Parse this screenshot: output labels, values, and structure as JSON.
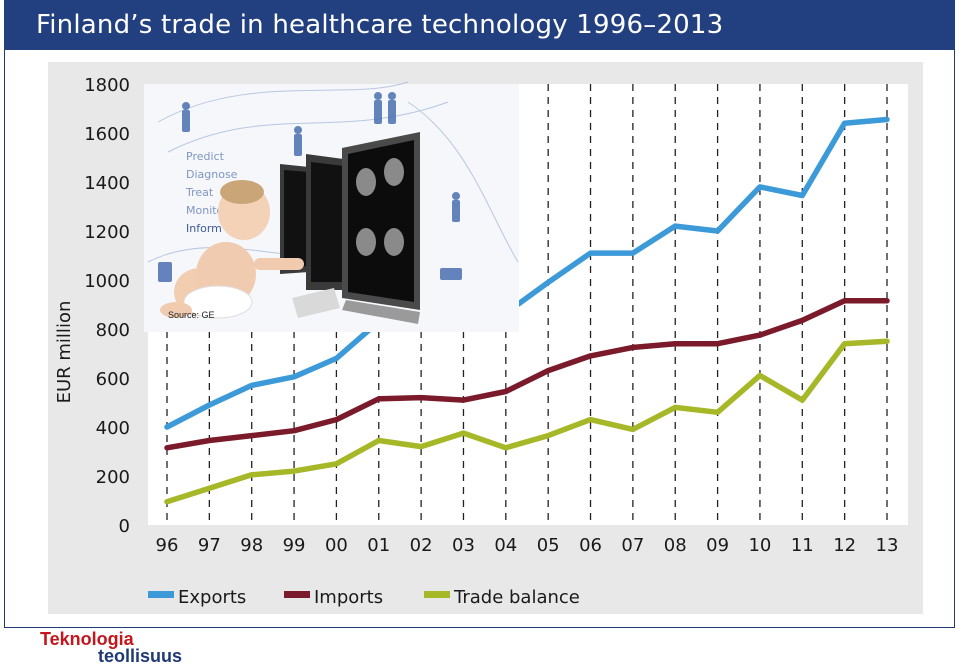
{
  "title": "Finland’s trade in healthcare technology 1996–2013",
  "inset_image": {
    "caption": "Source: GE",
    "words": [
      "Predict",
      "Diagnose",
      "Treat",
      "Monitor",
      "Inform"
    ]
  },
  "logo": {
    "line1": "Teknologia",
    "line2": "teollisuus"
  },
  "colors": {
    "exports": "#3d9ad9",
    "imports": "#7a1a2a",
    "trade_balance": "#a6b827",
    "title_bg": "#223f80"
  },
  "chart_data": {
    "type": "line",
    "title": "Finland’s trade in healthcare technology 1996–2013",
    "ylabel": "EUR million",
    "xlabel": "",
    "ylim": [
      0,
      1800
    ],
    "yticks": [
      0,
      200,
      400,
      600,
      800,
      1000,
      1200,
      1400,
      1600,
      1800
    ],
    "categories": [
      "96",
      "97",
      "98",
      "99",
      "00",
      "01",
      "02",
      "03",
      "04",
      "05",
      "06",
      "07",
      "08",
      "09",
      "10",
      "11",
      "12",
      "13"
    ],
    "grid": "vertical dashed",
    "legend_position": "bottom",
    "series": [
      {
        "name": "Exports",
        "color": "#3d9ad9",
        "values": [
          400,
          490,
          570,
          605,
          680,
          830,
          null,
          880,
          865,
          990,
          1110,
          1110,
          1220,
          1200,
          1380,
          1345,
          1640,
          1655
        ]
      },
      {
        "name": "Imports",
        "color": "#7a1a2a",
        "values": [
          315,
          345,
          365,
          385,
          430,
          515,
          520,
          510,
          545,
          630,
          690,
          725,
          740,
          740,
          775,
          835,
          915,
          915
        ]
      },
      {
        "name": "Trade balance",
        "color": "#a6b827",
        "values": [
          95,
          150,
          205,
          220,
          250,
          345,
          320,
          375,
          315,
          365,
          430,
          390,
          480,
          460,
          610,
          510,
          740,
          750
        ]
      }
    ]
  }
}
